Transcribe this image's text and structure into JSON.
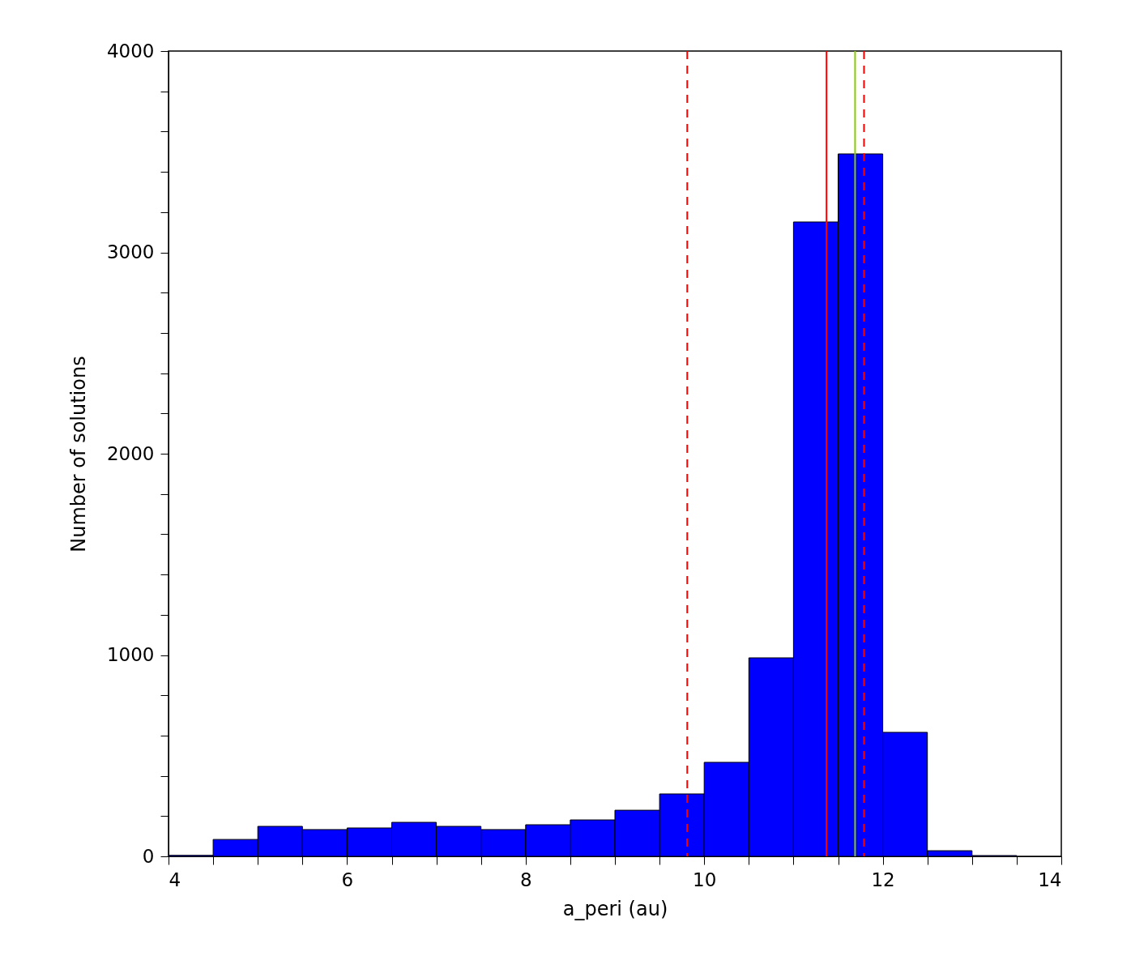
{
  "chart_data": {
    "type": "histogram",
    "xlabel": "a_peri (au)",
    "ylabel": "Number of solutions",
    "bins": [
      4,
      4.5,
      5,
      5.5,
      6,
      6.5,
      7,
      7.5,
      8,
      8.5,
      9,
      9.5,
      10,
      10.5,
      11,
      11.5,
      12,
      12.5,
      13,
      13.5,
      14
    ],
    "values": [
      5,
      84,
      149,
      133,
      141,
      169,
      149,
      133,
      157,
      181,
      229,
      310,
      467,
      986,
      3151,
      3489,
      616,
      28,
      4,
      null
    ],
    "color": "#0000ff",
    "xlim": [
      4,
      14
    ],
    "ylim": [
      0,
      4000
    ],
    "xticks": [
      4,
      {
        "value": 4.5,
        "label": null
      },
      {
        "value": 5,
        "label": null
      },
      {
        "value": 5.5,
        "label": null
      },
      6,
      {
        "value": 6.5,
        "label": null
      },
      {
        "value": 7,
        "label": null
      },
      {
        "value": 7.5,
        "label": null
      },
      8,
      {
        "value": 8.5,
        "label": null
      },
      {
        "value": 9,
        "label": null
      },
      {
        "value": 9.5,
        "label": null
      },
      10,
      {
        "value": 10.5,
        "label": null
      },
      {
        "value": 11,
        "label": null
      },
      {
        "value": 11.5,
        "label": null
      },
      12,
      {
        "value": 12.5,
        "label": null
      },
      {
        "value": 13,
        "label": null
      },
      {
        "value": 13.5,
        "label": null
      },
      14
    ],
    "yticks": [
      0,
      {
        "value": 200,
        "label": null
      },
      {
        "value": 400,
        "label": null
      },
      {
        "value": 600,
        "label": null
      },
      {
        "value": 800,
        "label": null
      },
      1000,
      {
        "value": 1200,
        "label": null
      },
      {
        "value": 1400,
        "label": null
      },
      {
        "value": 1600,
        "label": null
      },
      {
        "value": 1800,
        "label": null
      },
      2000,
      {
        "value": 2200,
        "label": null
      },
      {
        "value": 2400,
        "label": null
      },
      {
        "value": 2600,
        "label": null
      },
      {
        "value": 2800,
        "label": null
      },
      3000,
      {
        "value": 3200,
        "label": null
      },
      {
        "value": 3400,
        "label": null
      },
      {
        "value": 3600,
        "label": null
      },
      {
        "value": 3800,
        "label": null
      },
      4000
    ],
    "ref_lines": [
      {
        "axis": "x",
        "value": 9.81,
        "color": "#ff0000",
        "line_style": "dashed"
      },
      {
        "axis": "x",
        "value": 11.37,
        "color": "#ff0000",
        "line_style": "solid"
      },
      {
        "axis": "x",
        "value": 11.69,
        "color": "#88cc00",
        "line_style": "solid"
      },
      {
        "axis": "x",
        "value": 11.79,
        "color": "#ff0000",
        "line_style": "dashed"
      }
    ],
    "grid": false
  }
}
